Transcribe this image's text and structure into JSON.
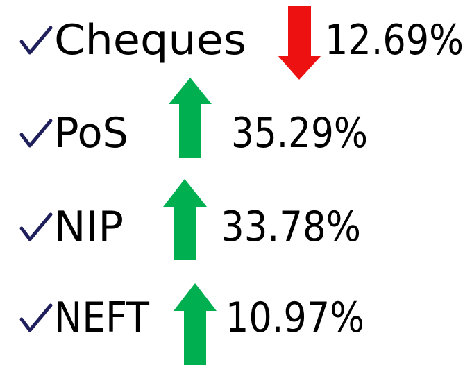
{
  "items": [
    {
      "label": "Cheques",
      "change": "12.69%"
    },
    {
      "label": "PoS",
      "change": "35.29%"
    },
    {
      "label": "NIP",
      "change": "33.78%"
    },
    {
      "label": "NEFT",
      "change": "10.97%"
    }
  ]
}
